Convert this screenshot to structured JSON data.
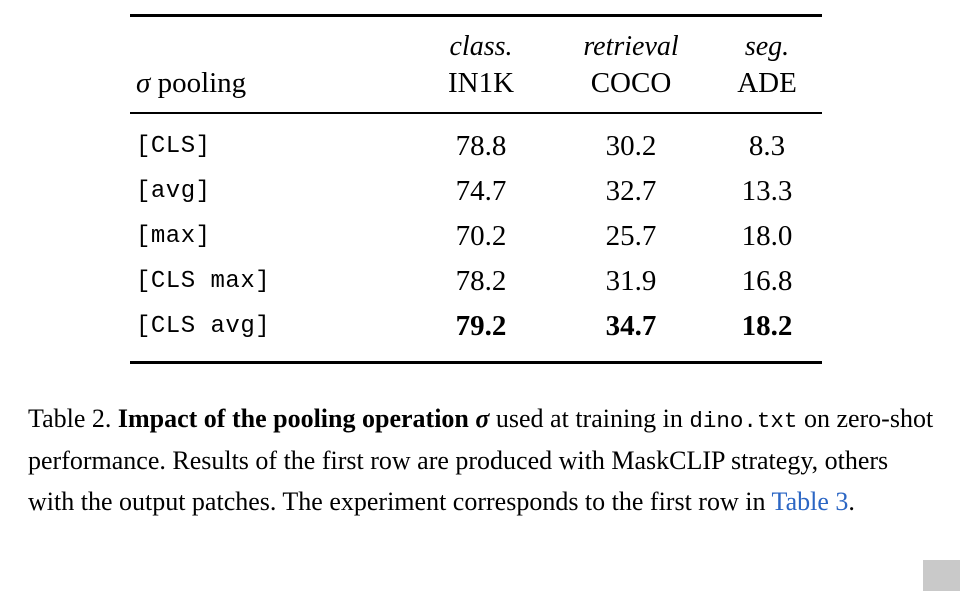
{
  "colors": {
    "link": "#2b66c4",
    "rule": "#000000",
    "corner_square": "#c9c9c9"
  },
  "table": {
    "group_headers": [
      "class.",
      "retrieval",
      "seg."
    ],
    "header": {
      "sigma": "σ",
      "row_label_rest": " pooling",
      "columns": [
        "IN1K",
        "COCO",
        "ADE"
      ]
    },
    "rows": [
      {
        "label": "[CLS]",
        "in1k": "78.8",
        "coco": "30.2",
        "ade": "8.3"
      },
      {
        "label": "[avg]",
        "in1k": "74.7",
        "coco": "32.7",
        "ade": "13.3"
      },
      {
        "label": "[max]",
        "in1k": "70.2",
        "coco": "25.7",
        "ade": "18.0"
      },
      {
        "label": "[CLS max]",
        "in1k": "78.2",
        "coco": "31.9",
        "ade": "16.8"
      },
      {
        "label": "[CLS avg]",
        "in1k": "79.2",
        "coco": "34.7",
        "ade": "18.2"
      }
    ]
  },
  "caption": {
    "prefix": "Table 2. ",
    "bold_title": "Impact of the pooling operation ",
    "sigma": "σ",
    "mid1": " used at training in ",
    "code": "dino.txt",
    "mid2": " on zero-shot performance. Results of the first row are produced with MaskCLIP strategy, others with the output patches. The experiment corresponds to the first row in ",
    "link": "Table 3",
    "suffix": "."
  }
}
